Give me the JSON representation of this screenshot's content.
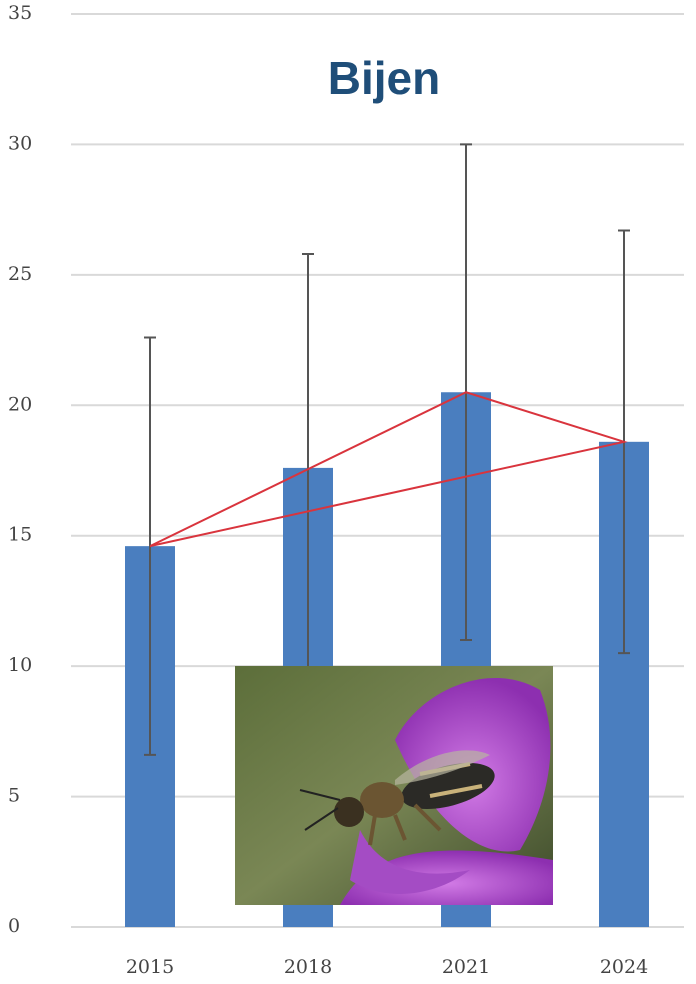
{
  "chart_data": {
    "type": "bar",
    "title": "Bijen",
    "categories": [
      "2015",
      "2018",
      "2021",
      "2024"
    ],
    "values": [
      14.6,
      17.6,
      20.5,
      18.6
    ],
    "errors": [
      8.0,
      8.2,
      9.5,
      8.1
    ],
    "color": "#4a7ebf",
    "error_color": "#555555",
    "connector_color": "#d9343d",
    "ylim": [
      0,
      35
    ],
    "yticks": [
      0,
      5,
      10,
      15,
      20,
      25,
      30,
      35
    ],
    "grid": true
  }
}
